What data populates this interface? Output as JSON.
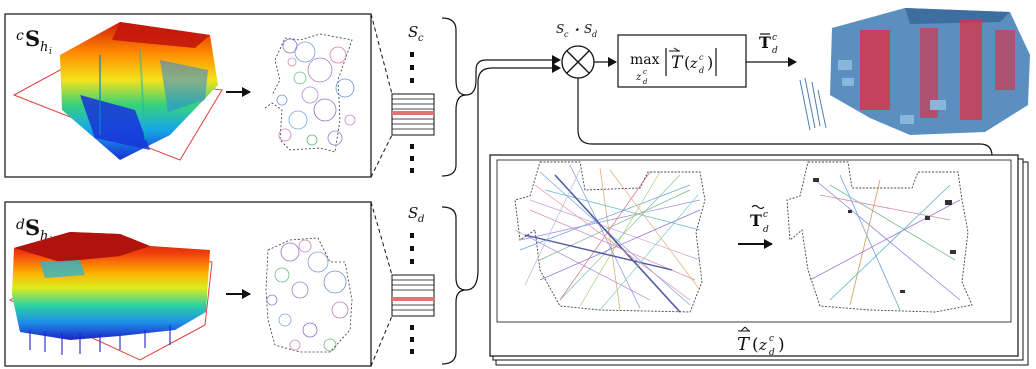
{
  "panels": {
    "top": {
      "sym": "S",
      "pre_sup": "c",
      "sub": "h",
      "sub_sub": "i"
    },
    "bottom": {
      "sym": "S",
      "pre_sup": "d",
      "sub": "h",
      "sub_sub": "j"
    }
  },
  "descriptors": {
    "top": {
      "sym": "S",
      "sub": "c"
    },
    "bottom": {
      "sym": "S",
      "sub": "d"
    }
  },
  "correlation": {
    "a": "S",
    "a_sub": "c",
    "op": "⋆",
    "b": "S",
    "b_sub": "d",
    "symbol": "⊗"
  },
  "maxbox": {
    "max": "max",
    "under": "z",
    "under_sup": "c",
    "under_sub": "d",
    "body": "T",
    "arg": "z",
    "arg_sup": "c",
    "arg_sub": "d"
  },
  "output": {
    "sym": "T",
    "sup": "c",
    "sub": "d"
  },
  "stack": {
    "caption_T": "T",
    "caption_arg": "z",
    "caption_sup": "c",
    "caption_sub": "d",
    "arrow_T": "T",
    "arrow_sup": "c",
    "arrow_sub": "d"
  },
  "colors": {
    "highlight": "#e57373",
    "frame_red": "#e0413a",
    "cloud_blue": "#5a8fc0",
    "cloud_red": "#e8283c"
  },
  "icons": [
    "arrow-right-icon",
    "correlation-otimes-icon"
  ]
}
